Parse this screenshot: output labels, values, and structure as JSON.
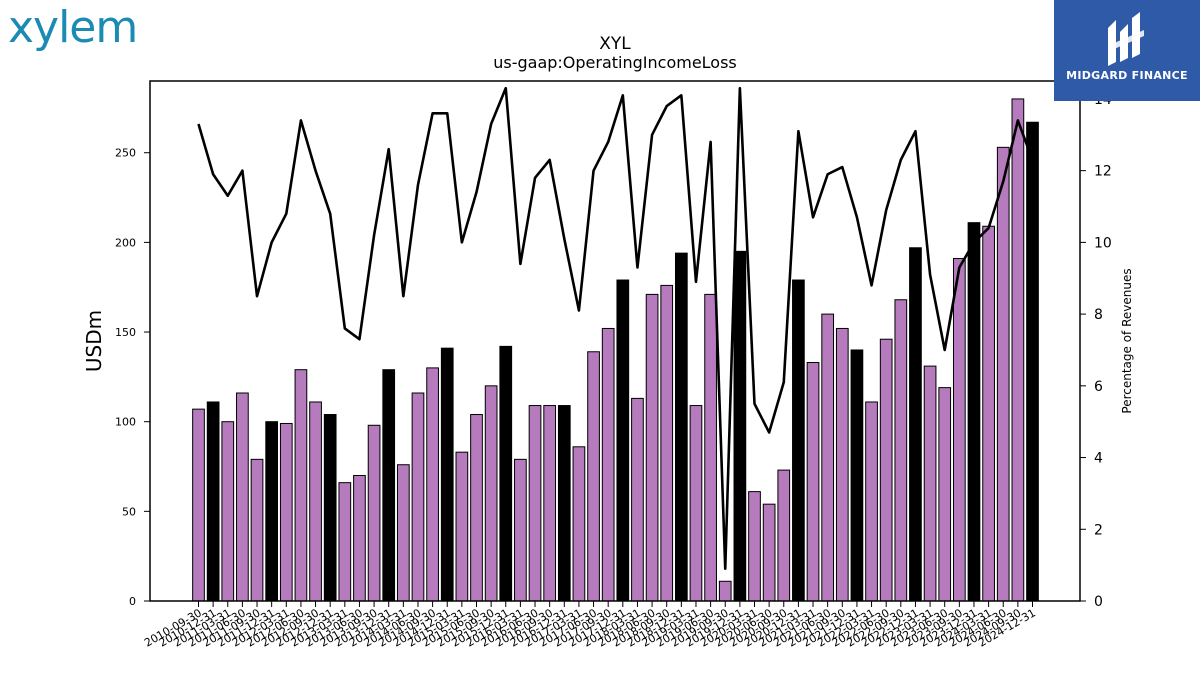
{
  "branding": {
    "left_logo": "xylem",
    "right_logo": "MIDGARD FINANCE",
    "accent_left": "#1b8bb4",
    "accent_right": "#2e5aa8"
  },
  "chart_data": {
    "type": "bar",
    "title": "XYL",
    "subtitle": "us-gaap:OperatingIncomeLoss",
    "ylabel": "USDm",
    "y2label": "Percentage of Revenues",
    "ylim": [
      0,
      290
    ],
    "y2lim": [
      0,
      14.5
    ],
    "yticks": [
      0,
      50,
      100,
      150,
      200,
      250
    ],
    "y2ticks": [
      0,
      2,
      4,
      6,
      8,
      10,
      12,
      14
    ],
    "colors": {
      "quarter_bar": "#b57bbd",
      "annual_bar": "#000000",
      "line": "#000000"
    },
    "categories": [
      "2010-09-30",
      "2010-12-31",
      "2011-03-31",
      "2011-06-30",
      "2011-09-30",
      "2011-12-31",
      "2012-03-31",
      "2012-06-30",
      "2012-09-30",
      "2012-12-31",
      "2013-03-31",
      "2013-06-30",
      "2013-09-30",
      "2013-12-31",
      "2014-03-31",
      "2014-06-30",
      "2014-09-30",
      "2014-12-31",
      "2015-03-31",
      "2015-06-30",
      "2015-09-30",
      "2015-12-31",
      "2016-03-31",
      "2016-06-30",
      "2016-09-30",
      "2016-12-31",
      "2017-03-31",
      "2017-06-30",
      "2017-09-30",
      "2017-12-31",
      "2018-03-31",
      "2018-06-30",
      "2018-09-30",
      "2018-12-31",
      "2019-03-31",
      "2019-06-30",
      "2019-09-30",
      "2019-12-31",
      "2020-03-31",
      "2020-06-30",
      "2020-09-30",
      "2020-12-31",
      "2021-03-31",
      "2021-06-30",
      "2021-09-30",
      "2021-12-31",
      "2022-03-31",
      "2022-06-30",
      "2022-09-30",
      "2022-12-31",
      "2023-03-31",
      "2023-06-30",
      "2023-09-30",
      "2023-12-31",
      "2024-03-31",
      "2024-06-30",
      "2024-09-30",
      "2024-12-31"
    ],
    "series": [
      {
        "values": [
          107,
          111,
          100,
          116,
          79,
          100,
          99,
          129,
          111,
          104,
          66,
          70,
          98,
          129,
          76,
          116,
          130,
          141,
          83,
          104,
          120,
          142,
          79,
          109,
          109,
          109,
          86,
          139,
          152,
          179,
          113,
          171,
          176,
          194,
          109,
          171,
          11,
          195,
          61,
          54,
          73,
          179,
          133,
          160,
          152,
          140,
          111,
          146,
          168,
          197,
          131,
          119,
          191,
          211,
          209,
          253,
          280,
          267
        ],
        "bar_kind": [
          "q",
          "a",
          "q",
          "q",
          "q",
          "a",
          "q",
          "q",
          "q",
          "a",
          "q",
          "q",
          "q",
          "a",
          "q",
          "q",
          "q",
          "a",
          "q",
          "q",
          "q",
          "a",
          "q",
          "q",
          "q",
          "a",
          "q",
          "q",
          "q",
          "a",
          "q",
          "q",
          "q",
          "a",
          "q",
          "q",
          "q",
          "a",
          "q",
          "q",
          "q",
          "a",
          "q",
          "q",
          "q",
          "a",
          "q",
          "q",
          "q",
          "a",
          "q",
          "q",
          "q",
          "a",
          "q",
          "q",
          "q",
          "a"
        ]
      },
      {
        "name": "Percentage of Revenues",
        "axis": "right",
        "values": [
          13.3,
          11.9,
          11.3,
          12.0,
          8.5,
          10.0,
          10.8,
          13.4,
          12.0,
          10.8,
          7.6,
          7.3,
          10.2,
          12.6,
          8.5,
          11.6,
          13.6,
          13.6,
          10.0,
          11.4,
          13.3,
          14.3,
          9.4,
          11.8,
          12.3,
          10.1,
          8.1,
          12.0,
          12.8,
          14.1,
          9.3,
          13.0,
          13.8,
          14.1,
          8.9,
          12.8,
          0.9,
          14.3,
          5.5,
          4.7,
          6.1,
          13.1,
          10.7,
          11.9,
          12.1,
          10.7,
          8.8,
          10.9,
          12.3,
          13.1,
          9.1,
          7.0,
          9.3,
          10.0,
          10.4,
          11.7,
          13.4,
          12.3
        ]
      }
    ]
  }
}
